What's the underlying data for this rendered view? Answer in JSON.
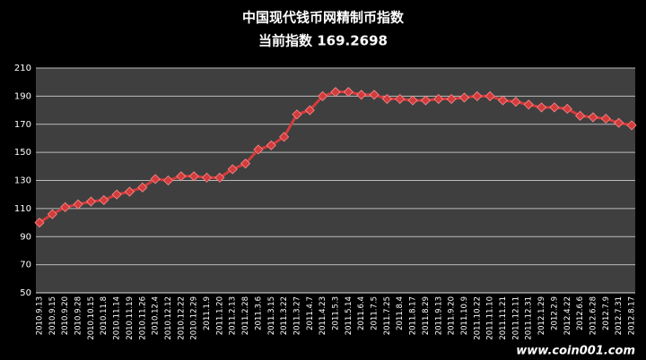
{
  "chart_data": {
    "type": "line",
    "title": "中国现代钱币网精制币指数",
    "subtitle": "当前指数 169.2698",
    "watermark": "www.coin001.com",
    "categories": [
      "2010.9.13",
      "2010.9.15",
      "2010.9.20",
      "2010.9.28",
      "2010.10.15",
      "2010.11.8",
      "2010.11.14",
      "2010.11.19",
      "2010.11.26",
      "2010.12.4",
      "2010.12.12",
      "2010.12.22",
      "2010.12.29",
      "2011.1.9",
      "2011.1.20",
      "2011.2.13",
      "2011.2.28",
      "2011.3.6",
      "2011.3.15",
      "2011.3.22",
      "2011.3.27",
      "2011.4.7",
      "2011.4.23",
      "2011.5.3",
      "2011.5.14",
      "2011.6.4",
      "2011.7.5",
      "2011.7.25",
      "2011.8.4",
      "2011.8.17",
      "2011.8.29",
      "2011.9.13",
      "2011.9.20",
      "2011.10.9",
      "2011.10.22",
      "2011.11.10",
      "2011.11.21",
      "2011.12.11",
      "2011.12.31",
      "2012.1.29",
      "2012.2.9",
      "2012.4.22",
      "2012.6.6",
      "2012.6.28",
      "2012.7.9",
      "2012.7.31",
      "2012.8.17"
    ],
    "series": [
      {
        "name": "指数",
        "color": "#d23c3c",
        "values": [
          100,
          106,
          111,
          113,
          115,
          116,
          120,
          122,
          125,
          131,
          130,
          133,
          133,
          132,
          132,
          138,
          142,
          152,
          155,
          161,
          177,
          180,
          190,
          193,
          193,
          191,
          191,
          188,
          188,
          187,
          187,
          188,
          188,
          189,
          190,
          190,
          187,
          186,
          184,
          182,
          182,
          181,
          176,
          175,
          174,
          171,
          169.2698
        ]
      }
    ],
    "ylim": [
      50,
      210
    ],
    "yticks": [
      50,
      70,
      90,
      110,
      130,
      150,
      170,
      190,
      210
    ],
    "grid": true
  }
}
